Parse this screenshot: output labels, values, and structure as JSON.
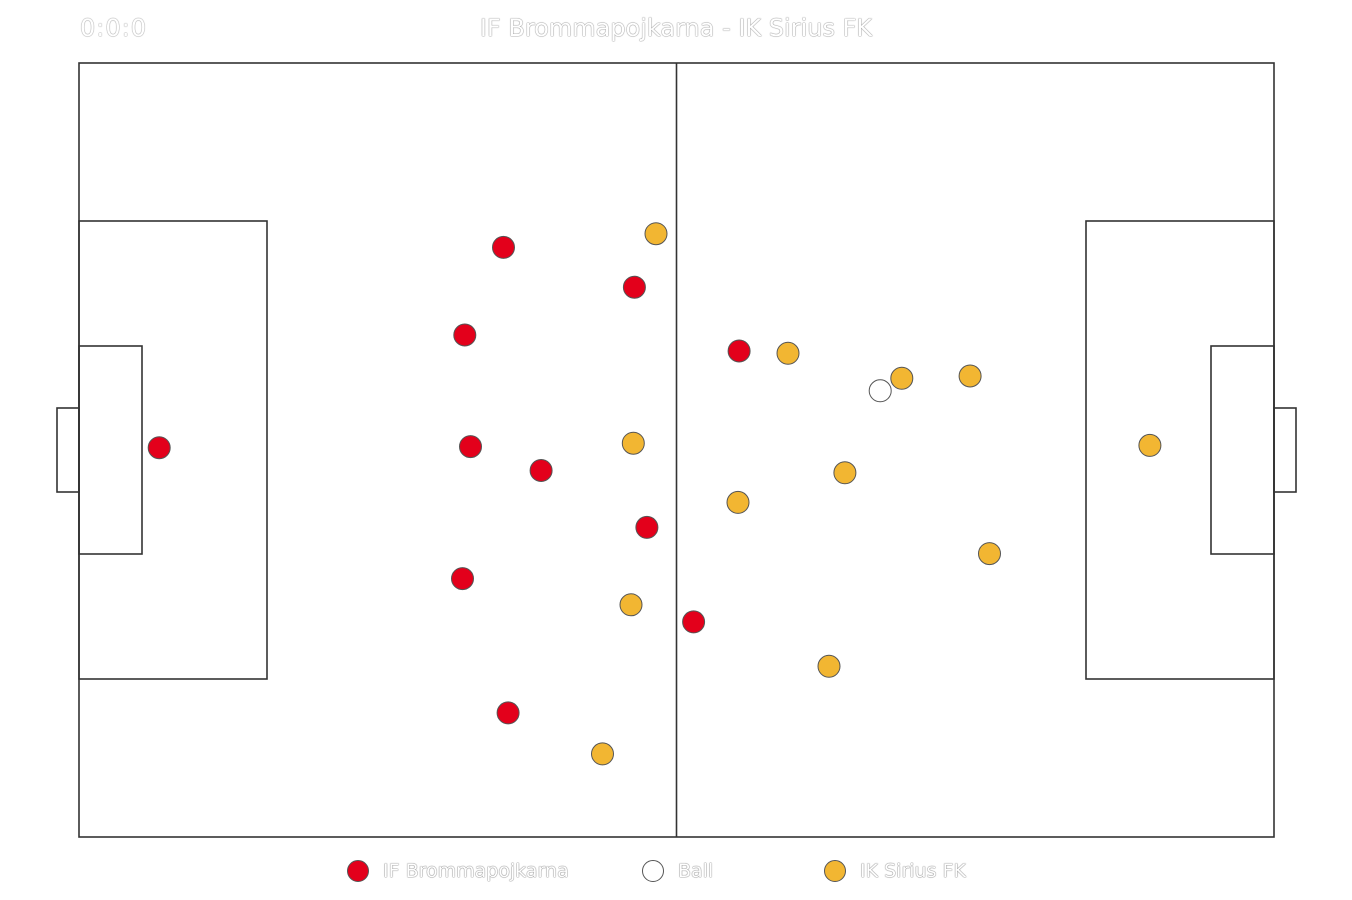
{
  "clock": "0:0:0",
  "title": "IF Brommapojkarna - IK Sirius FK",
  "colors": {
    "home": "#e3001b",
    "away": "#f2b632",
    "ball": "#ffffff",
    "lines": "#333333"
  },
  "pitch": {
    "length": 105,
    "width": 68
  },
  "legend": [
    {
      "label": "IF Brommapojkarna",
      "team": "home"
    },
    {
      "label": "Ball",
      "team": "ball"
    },
    {
      "label": "IK Sirius FK",
      "team": "away"
    }
  ],
  "players": {
    "home": [
      [
        7.05,
        34.2
      ],
      [
        37.3,
        51.8
      ],
      [
        48.8,
        48.3
      ],
      [
        33.9,
        44.1
      ],
      [
        34.4,
        34.3
      ],
      [
        40.6,
        32.2
      ],
      [
        49.9,
        27.2
      ],
      [
        33.7,
        22.7
      ],
      [
        37.7,
        10.9
      ],
      [
        58.0,
        42.7
      ],
      [
        54.0,
        18.9
      ]
    ],
    "away": [
      [
        94.1,
        34.4
      ],
      [
        50.7,
        53.0
      ],
      [
        62.3,
        42.5
      ],
      [
        72.3,
        40.3
      ],
      [
        78.3,
        40.5
      ],
      [
        57.9,
        29.4
      ],
      [
        67.3,
        32.0
      ],
      [
        48.7,
        34.6
      ],
      [
        80.0,
        24.9
      ],
      [
        48.5,
        20.4
      ],
      [
        65.9,
        15.0
      ],
      [
        46.0,
        7.3
      ]
    ],
    "ball": [
      70.4,
      39.2
    ]
  }
}
